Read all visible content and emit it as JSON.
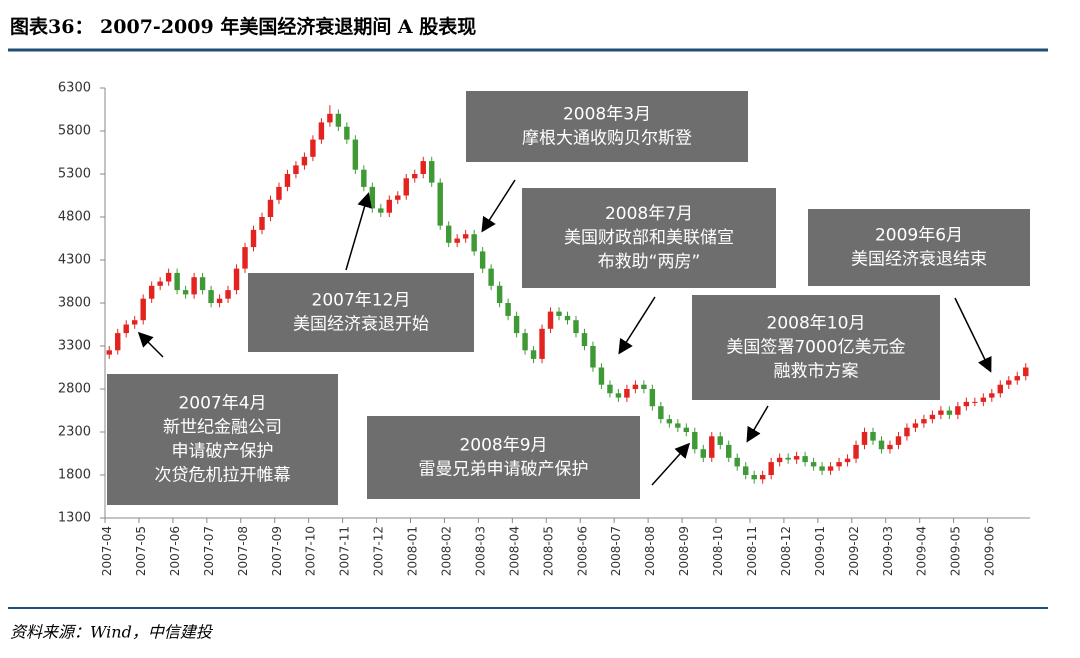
{
  "title": "图表36： 2007-2009 年美国经济衰退期间 A 股表现",
  "source": "资料来源：Wind，中信建投",
  "chart_data": {
    "type": "candlestick",
    "categories": [
      "2007-04",
      null,
      null,
      null,
      "2007-05",
      null,
      null,
      null,
      "2007-06",
      null,
      null,
      null,
      "2007-07",
      null,
      null,
      null,
      "2007-08",
      null,
      null,
      null,
      "2007-09",
      null,
      null,
      null,
      "2007-10",
      null,
      null,
      null,
      "2007-11",
      null,
      null,
      null,
      "2007-12",
      null,
      null,
      null,
      "2008-01",
      null,
      null,
      null,
      "2008-02",
      null,
      null,
      null,
      "2008-03",
      null,
      null,
      null,
      "2008-04",
      null,
      null,
      null,
      "2008-05",
      null,
      null,
      null,
      "2008-06",
      null,
      null,
      null,
      "2008-07",
      null,
      null,
      null,
      "2008-08",
      null,
      null,
      null,
      "2008-09",
      null,
      null,
      null,
      "2008-10",
      null,
      null,
      null,
      "2008-11",
      null,
      null,
      null,
      "2008-12",
      null,
      null,
      null,
      "2009-01",
      null,
      null,
      null,
      "2009-02",
      null,
      null,
      null,
      "2009-03",
      null,
      null,
      null,
      "2009-04",
      null,
      null,
      null,
      "2009-05",
      null,
      null,
      null,
      "2009-06",
      null,
      null,
      null,
      null
    ],
    "open": [
      3200,
      3250,
      3450,
      3550,
      3600,
      3850,
      4000,
      4050,
      4150,
      3950,
      3900,
      4100,
      3950,
      3800,
      3850,
      3950,
      4200,
      4450,
      4650,
      4800,
      5000,
      5150,
      5300,
      5400,
      5500,
      5700,
      5900,
      6000,
      5850,
      5700,
      5350,
      5150,
      4900,
      4850,
      5000,
      5050,
      5250,
      5300,
      5450,
      5200,
      4700,
      4500,
      4550,
      4600,
      4400,
      4200,
      4000,
      3800,
      3650,
      3450,
      3250,
      3150,
      3500,
      3700,
      3650,
      3600,
      3450,
      3300,
      3050,
      2850,
      2750,
      2700,
      2800,
      2850,
      2800,
      2600,
      2450,
      2400,
      2350,
      2300,
      2100,
      2000,
      2250,
      2150,
      2000,
      1900,
      1800,
      1750,
      1800,
      1950,
      2000,
      1980,
      2020,
      1950,
      1900,
      1850,
      1900,
      1950,
      1990,
      2150,
      2300,
      2200,
      2100,
      2150,
      2250,
      2350,
      2400,
      2450,
      2500,
      2550,
      2500,
      2600,
      2650,
      2650,
      2700,
      2750,
      2850,
      2900,
      2950
    ],
    "high": [
      3300,
      3500,
      3600,
      3650,
      3900,
      4050,
      4100,
      4200,
      4200,
      4000,
      4150,
      4150,
      4000,
      3900,
      4000,
      4250,
      4500,
      4700,
      4850,
      5050,
      5200,
      5350,
      5450,
      5550,
      5750,
      5950,
      6100,
      6050,
      5900,
      5750,
      5400,
      5200,
      4950,
      5050,
      5100,
      5300,
      5350,
      5500,
      5500,
      5250,
      4750,
      4600,
      4650,
      4650,
      4450,
      4250,
      4050,
      3850,
      3700,
      3500,
      3300,
      3550,
      3750,
      3750,
      3700,
      3650,
      3500,
      3350,
      3100,
      2900,
      2800,
      2850,
      2900,
      2900,
      2850,
      2650,
      2500,
      2450,
      2400,
      2350,
      2150,
      2300,
      2300,
      2200,
      2050,
      1950,
      1850,
      1850,
      2000,
      2050,
      2050,
      2070,
      2070,
      2000,
      1950,
      1950,
      2000,
      2040,
      2200,
      2350,
      2350,
      2250,
      2200,
      2300,
      2400,
      2450,
      2500,
      2550,
      2600,
      2600,
      2650,
      2700,
      2700,
      2750,
      2800,
      2900,
      2950,
      3000,
      3100
    ],
    "low": [
      3150,
      3200,
      3400,
      3500,
      3550,
      3800,
      3950,
      4000,
      3900,
      3850,
      3850,
      3900,
      3750,
      3750,
      3800,
      3900,
      4150,
      4400,
      4600,
      4750,
      4950,
      5100,
      5250,
      5350,
      5450,
      5650,
      5850,
      5800,
      5650,
      5300,
      5100,
      4850,
      4800,
      4800,
      4950,
      5000,
      5200,
      5250,
      5150,
      4650,
      4450,
      4450,
      4500,
      4350,
      4150,
      3950,
      3750,
      3600,
      3400,
      3200,
      3100,
      3100,
      3450,
      3600,
      3550,
      3400,
      3250,
      3000,
      2800,
      2700,
      2650,
      2650,
      2750,
      2750,
      2550,
      2400,
      2350,
      2300,
      2250,
      2050,
      1950,
      1950,
      2100,
      1950,
      1850,
      1750,
      1700,
      1700,
      1750,
      1900,
      1930,
      1930,
      1900,
      1850,
      1800,
      1800,
      1850,
      1900,
      1940,
      2100,
      2150,
      2050,
      2050,
      2100,
      2200,
      2300,
      2350,
      2400,
      2450,
      2450,
      2450,
      2550,
      2600,
      2600,
      2650,
      2700,
      2800,
      2850,
      2900
    ],
    "close": [
      3250,
      3450,
      3550,
      3600,
      3850,
      4000,
      4050,
      4150,
      3950,
      3900,
      4100,
      3950,
      3800,
      3850,
      3950,
      4200,
      4450,
      4650,
      4800,
      5000,
      5150,
      5300,
      5400,
      5500,
      5700,
      5900,
      6000,
      5850,
      5700,
      5350,
      5150,
      4900,
      4850,
      5000,
      5050,
      5250,
      5300,
      5450,
      5200,
      4700,
      4500,
      4550,
      4600,
      4400,
      4200,
      4000,
      3800,
      3650,
      3450,
      3250,
      3150,
      3500,
      3700,
      3650,
      3600,
      3450,
      3300,
      3050,
      2850,
      2750,
      2700,
      2800,
      2850,
      2800,
      2600,
      2450,
      2400,
      2350,
      2300,
      2100,
      2000,
      2250,
      2150,
      2000,
      1900,
      1800,
      1750,
      1800,
      1950,
      2000,
      1980,
      2020,
      1950,
      1900,
      1850,
      1900,
      1950,
      1990,
      2150,
      2300,
      2200,
      2100,
      2150,
      2250,
      2350,
      2400,
      2450,
      2500,
      2550,
      2500,
      2600,
      2650,
      2650,
      2700,
      2750,
      2850,
      2900,
      2950,
      3050
    ],
    "ylim": [
      1300,
      6300
    ],
    "yticks": [
      1300,
      1800,
      2300,
      2800,
      3300,
      3800,
      4300,
      4800,
      5300,
      5800,
      6300
    ],
    "up_color": "#e3231f",
    "down_color": "#3f9a36",
    "annotations": [
      {
        "lines": [
          "2007年4月",
          "新世纪金融公司",
          "申请破产保护",
          "次贷危机拉开帷幕"
        ]
      },
      {
        "lines": [
          "2007年12月",
          "美国经济衰退开始"
        ]
      },
      {
        "lines": [
          "2008年3月",
          "摩根大通收购贝尔斯登"
        ]
      },
      {
        "lines": [
          "2008年7月",
          "美国财政部和美联储宣",
          "布救助“两房”"
        ]
      },
      {
        "lines": [
          "2008年9月",
          "雷曼兄弟申请破产保护"
        ]
      },
      {
        "lines": [
          "2008年10月",
          "美国签署7000亿美元金",
          "融救市方案"
        ]
      },
      {
        "lines": [
          "2009年6月",
          "美国经济衰退结束"
        ]
      }
    ]
  }
}
